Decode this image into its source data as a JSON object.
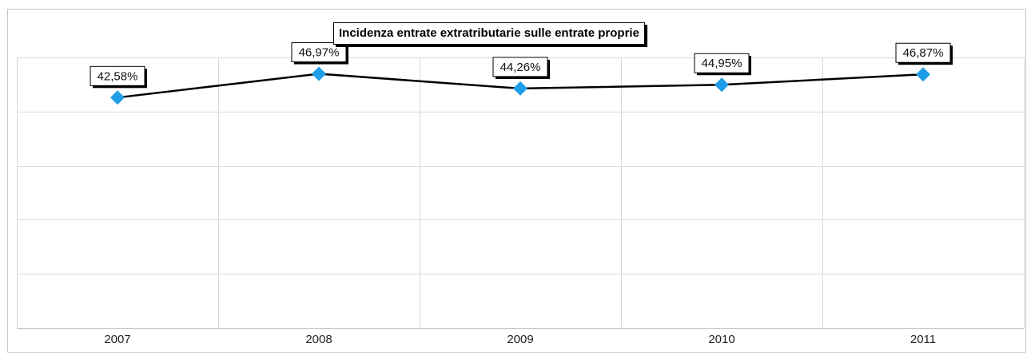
{
  "chart_data": {
    "type": "line",
    "title": "Incidenza entrate extratributarie sulle entrate proprie",
    "categories": [
      "2007",
      "2008",
      "2009",
      "2010",
      "2011"
    ],
    "series": [
      {
        "values": [
          42.58,
          46.97,
          44.26,
          44.95,
          46.87
        ],
        "labels": [
          "42,58%",
          "46,97%",
          "44,26%",
          "44,95%",
          "46,87%"
        ]
      }
    ],
    "ylim": [
      0,
      50
    ],
    "grid": true,
    "legend": "none",
    "colors": {
      "line": "#000000",
      "marker": "#1e9ee6",
      "grid": "#d9d9d9"
    }
  }
}
